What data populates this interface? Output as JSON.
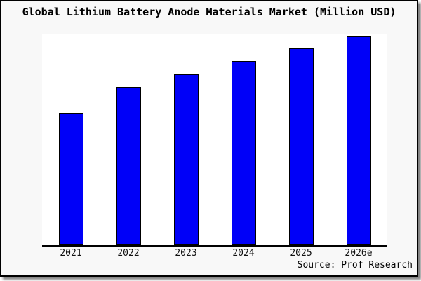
{
  "window": {
    "background": "#f8f8f8",
    "border_color": "#000000",
    "plot_background": "#ffffff"
  },
  "chart_data": {
    "type": "bar",
    "title": "Global Lithium Battery Anode Materials Market (Million USD)",
    "categories": [
      "2021",
      "2022",
      "2023",
      "2024",
      "2025",
      "2026e"
    ],
    "values": [
      63,
      75.5,
      81.5,
      88,
      94,
      100
    ],
    "values_note": "relative bar heights estimated from pixels; no y-axis scale is shown; tallest bar (2026e) = 100",
    "xlabel": "",
    "ylabel": "",
    "ylim": [
      0,
      101
    ],
    "grid": false,
    "legend": null,
    "bar_color": "#0000f8",
    "bar_border_color": "#000000",
    "axis_color": "#000000"
  },
  "source": {
    "label": "Source: Prof Research"
  }
}
